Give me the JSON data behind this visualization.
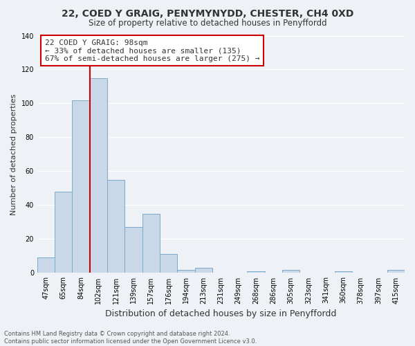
{
  "title": "22, COED Y GRAIG, PENYMYNYDD, CHESTER, CH4 0XD",
  "subtitle": "Size of property relative to detached houses in Penyffordd",
  "xlabel": "Distribution of detached houses by size in Penyffordd",
  "ylabel": "Number of detached properties",
  "bar_labels": [
    "47sqm",
    "65sqm",
    "84sqm",
    "102sqm",
    "121sqm",
    "139sqm",
    "157sqm",
    "176sqm",
    "194sqm",
    "213sqm",
    "231sqm",
    "249sqm",
    "268sqm",
    "286sqm",
    "305sqm",
    "323sqm",
    "341sqm",
    "360sqm",
    "378sqm",
    "397sqm",
    "415sqm"
  ],
  "bar_values": [
    9,
    48,
    102,
    115,
    55,
    27,
    35,
    11,
    2,
    3,
    0,
    0,
    1,
    0,
    2,
    0,
    0,
    1,
    0,
    0,
    2
  ],
  "bar_color": "#c8d8e8",
  "bar_edge_color": "#7baac8",
  "vline_color": "#cc0000",
  "vline_x_index": 2.5,
  "ylim": [
    0,
    140
  ],
  "annotation_title": "22 COED Y GRAIG: 98sqm",
  "annotation_line1": "← 33% of detached houses are smaller (135)",
  "annotation_line2": "67% of semi-detached houses are larger (275) →",
  "annotation_box_color": "#ffffff",
  "annotation_box_edge": "#cc0000",
  "footer_line1": "Contains HM Land Registry data © Crown copyright and database right 2024.",
  "footer_line2": "Contains public sector information licensed under the Open Government Licence v3.0.",
  "background_color": "#eef2f7",
  "grid_color": "#ffffff",
  "text_color": "#333333"
}
